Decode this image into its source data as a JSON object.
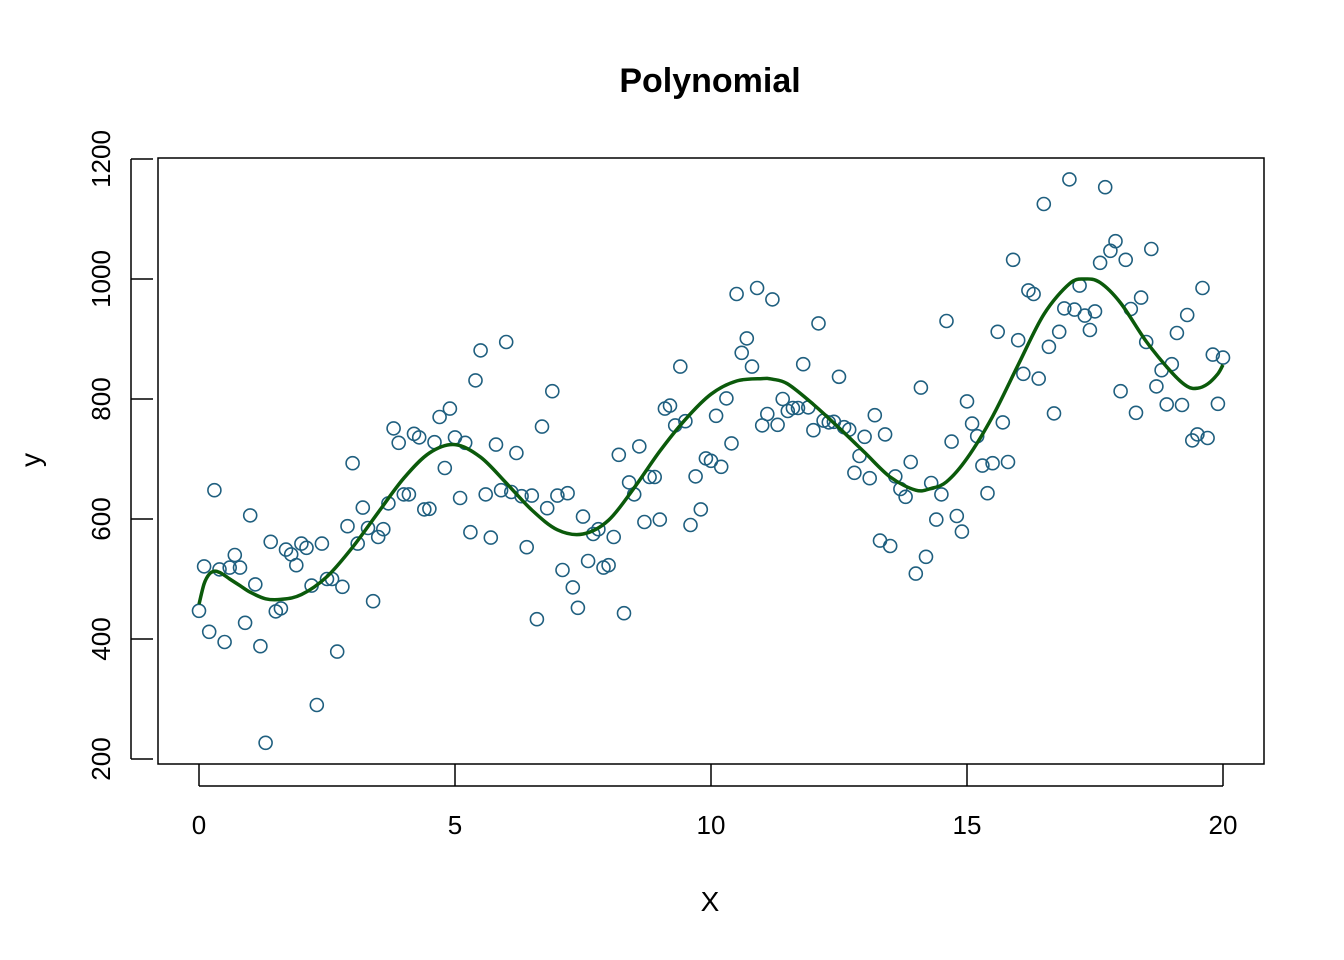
{
  "chart_data": {
    "type": "scatter",
    "title": "Polynomial",
    "xlabel": "X",
    "ylabel": "y",
    "xlim": [
      0,
      20
    ],
    "ylim": [
      200,
      1200
    ],
    "xticks": [
      0,
      5,
      10,
      15,
      20
    ],
    "yticks": [
      200,
      400,
      600,
      800,
      1000,
      1200
    ],
    "grid": false,
    "legend": "none",
    "colors": {
      "points": "#1f5f7f",
      "fit": "#0b5a0b",
      "frame": "#000000"
    },
    "points": {
      "x": [
        0.0,
        0.1,
        0.2,
        0.3,
        0.4,
        0.5,
        0.6,
        0.7,
        0.8,
        0.9,
        1.0,
        1.1,
        1.2,
        1.3,
        1.4,
        1.5,
        1.6,
        1.7,
        1.8,
        1.9,
        2.0,
        2.1,
        2.2,
        2.3,
        2.4,
        2.5,
        2.6,
        2.7,
        2.8,
        2.9,
        3.0,
        3.1,
        3.2,
        3.3,
        3.4,
        3.5,
        3.6,
        3.7,
        3.8,
        3.9,
        4.0,
        4.1,
        4.2,
        4.3,
        4.4,
        4.5,
        4.6,
        4.7,
        4.8,
        4.9,
        5.0,
        5.1,
        5.2,
        5.3,
        5.4,
        5.5,
        5.6,
        5.7,
        5.8,
        5.9,
        6.0,
        6.1,
        6.2,
        6.3,
        6.4,
        6.5,
        6.6,
        6.7,
        6.8,
        6.9,
        7.0,
        7.1,
        7.2,
        7.3,
        7.4,
        7.5,
        7.6,
        7.7,
        7.8,
        7.9,
        8.0,
        8.1,
        8.2,
        8.3,
        8.4,
        8.5,
        8.6,
        8.7,
        8.8,
        8.9,
        9.0,
        9.1,
        9.2,
        9.3,
        9.4,
        9.5,
        9.6,
        9.7,
        9.8,
        9.9,
        10.0,
        10.1,
        10.2,
        10.3,
        10.4,
        10.5,
        10.6,
        10.7,
        10.8,
        10.9,
        11.0,
        11.1,
        11.2,
        11.3,
        11.4,
        11.5,
        11.6,
        11.7,
        11.8,
        11.9,
        12.0,
        12.1,
        12.2,
        12.3,
        12.4,
        12.5,
        12.6,
        12.7,
        12.8,
        12.9,
        13.0,
        13.1,
        13.2,
        13.3,
        13.4,
        13.5,
        13.6,
        13.7,
        13.8,
        13.9,
        14.0,
        14.1,
        14.2,
        14.3,
        14.4,
        14.5,
        14.6,
        14.7,
        14.8,
        14.9,
        15.0,
        15.1,
        15.2,
        15.3,
        15.4,
        15.5,
        15.6,
        15.7,
        15.8,
        15.9,
        16.0,
        16.1,
        16.2,
        16.3,
        16.4,
        16.5,
        16.6,
        16.7,
        16.8,
        16.9,
        17.0,
        17.1,
        17.2,
        17.3,
        17.4,
        17.5,
        17.6,
        17.7,
        17.8,
        17.9,
        18.0,
        18.1,
        18.2,
        18.3,
        18.4,
        18.5,
        18.6,
        18.7,
        18.8,
        18.9,
        19.0,
        19.1,
        19.2,
        19.3,
        19.4,
        19.5,
        19.6,
        19.7,
        19.8,
        19.9,
        20.0
      ],
      "y": [
        447,
        521,
        412,
        648,
        516,
        395,
        519,
        540,
        519,
        427,
        606,
        491,
        388,
        227,
        562,
        446,
        451,
        549,
        541,
        523,
        559,
        552,
        489,
        290,
        559,
        500,
        500,
        379,
        487,
        588,
        693,
        559,
        619,
        585,
        463,
        570,
        583,
        626,
        751,
        727,
        641,
        641,
        742,
        736,
        616,
        617,
        728,
        770,
        685,
        784,
        736,
        635,
        727,
        578,
        831,
        881,
        641,
        569,
        724,
        648,
        895,
        645,
        710,
        638,
        553,
        639,
        433,
        754,
        618,
        813,
        639,
        515,
        643,
        486,
        452,
        604,
        530,
        575,
        583,
        519,
        523,
        570,
        707,
        443,
        661,
        641,
        721,
        595,
        670,
        670,
        599,
        784,
        789,
        756,
        854,
        763,
        590,
        671,
        616,
        701,
        697,
        772,
        687,
        801,
        726,
        975,
        877,
        901,
        854,
        985,
        756,
        775,
        966,
        757,
        800,
        780,
        785,
        785,
        858,
        786,
        748,
        926,
        764,
        761,
        762,
        837,
        753,
        749,
        677,
        705,
        737,
        668,
        773,
        564,
        741,
        555,
        671,
        650,
        637,
        695,
        509,
        819,
        537,
        660,
        599,
        641,
        930,
        729,
        605,
        579,
        796,
        759,
        738,
        689,
        643,
        693,
        912,
        761,
        695,
        1032,
        898,
        842,
        981,
        975,
        834,
        1125,
        887,
        776,
        912,
        951,
        1166,
        949,
        989,
        939,
        915,
        946,
        1027,
        1153,
        1047,
        1063,
        813,
        1032,
        950,
        777,
        969,
        895,
        1050,
        821,
        848,
        791,
        858,
        910,
        790,
        940,
        731,
        741,
        985,
        735,
        874,
        792,
        869
      ]
    },
    "fit": {
      "x": [
        0.0,
        0.1,
        0.2,
        0.3,
        0.4,
        0.5,
        0.6,
        0.8,
        1.0,
        1.3,
        1.6,
        2.0,
        2.5,
        3.0,
        3.5,
        4.0,
        4.5,
        5.0,
        5.5,
        6.0,
        6.5,
        7.0,
        7.5,
        8.0,
        8.5,
        9.0,
        9.5,
        10.0,
        10.5,
        11.0,
        11.2,
        11.5,
        12.0,
        12.5,
        13.0,
        13.5,
        14.0,
        14.3,
        14.6,
        15.0,
        15.5,
        16.0,
        16.5,
        17.0,
        17.3,
        17.6,
        18.0,
        18.5,
        19.0,
        19.3,
        19.5,
        19.7,
        19.9,
        20.0
      ],
      "y": [
        458,
        492,
        508,
        513,
        511,
        506,
        500,
        489,
        478,
        467,
        466,
        474,
        504,
        553,
        611,
        668,
        710,
        724,
        703,
        660,
        615,
        582,
        575,
        598,
        652,
        713,
        766,
        808,
        830,
        834,
        833,
        825,
        791,
        752,
        711,
        670,
        648,
        651,
        662,
        701,
        771,
        857,
        941,
        992,
        1000,
        994,
        960,
        896,
        844,
        821,
        818,
        825,
        842,
        857
      ]
    }
  }
}
